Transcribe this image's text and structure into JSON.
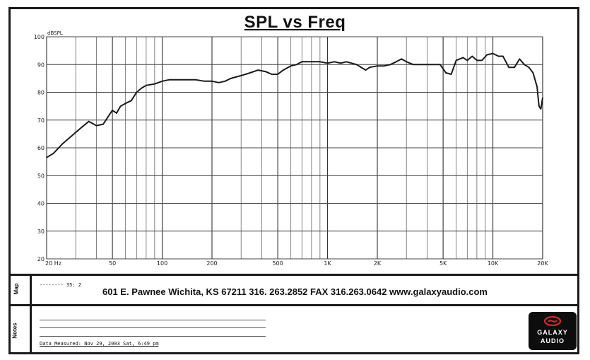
{
  "title": "SPL vs Freq",
  "side_labels": {
    "map": "Map",
    "notes": "Notes"
  },
  "cursor_note": "-------- 35: 2",
  "address": "601 E. Pawnee Wichita, KS 67211 316. 263.2852 FAX 316.263.0642 www.galaxyaudio.com",
  "date_measured": "Data Measured: Nov 29, 2003  Sat, 6:49 pm",
  "logo": {
    "line1": "GALAXY",
    "line2": "AUDIO",
    "accent": "#d7262b"
  },
  "chart_data": {
    "type": "line",
    "title": "SPL vs Freq",
    "ylabel": "dBSPL",
    "xlabel": "",
    "x_scale": "log",
    "xlim": [
      20,
      20000
    ],
    "ylim": [
      20,
      100
    ],
    "y_ticks": [
      20,
      30,
      40,
      50,
      60,
      70,
      80,
      90,
      100
    ],
    "x_tick_labels": [
      {
        "x": 20,
        "label": "20  Hz"
      },
      {
        "x": 50,
        "label": "50"
      },
      {
        "x": 100,
        "label": "100"
      },
      {
        "x": 200,
        "label": "200"
      },
      {
        "x": 500,
        "label": "500"
      },
      {
        "x": 1000,
        "label": "1K"
      },
      {
        "x": 2000,
        "label": "2K"
      },
      {
        "x": 5000,
        "label": "5K"
      },
      {
        "x": 10000,
        "label": "10K"
      },
      {
        "x": 20000,
        "label": "20K"
      }
    ],
    "grid": true,
    "line_color": "#1a1a1a",
    "series": [
      {
        "x": [
          20,
          22,
          25,
          28,
          32,
          36,
          40,
          44,
          48,
          50,
          53,
          56,
          60,
          65,
          70,
          75,
          80,
          90,
          100,
          110,
          120,
          140,
          160,
          180,
          200,
          220,
          240,
          260,
          300,
          340,
          380,
          420,
          460,
          500,
          540,
          600,
          650,
          700,
          800,
          900,
          1000,
          1100,
          1200,
          1300,
          1500,
          1700,
          1800,
          2000,
          2200,
          2400,
          2600,
          2800,
          3000,
          3300,
          3600,
          4000,
          4400,
          4800,
          5200,
          5600,
          6000,
          6600,
          7000,
          7500,
          8000,
          8600,
          9200,
          10000,
          10800,
          11500,
          12500,
          13500,
          14500,
          15500,
          16500,
          17500,
          18500,
          19000,
          19500,
          20000
        ],
        "y": [
          56.5,
          58,
          61.5,
          64,
          67,
          69.5,
          68,
          68.5,
          72,
          73.5,
          72.5,
          75,
          76,
          77,
          80,
          81.5,
          82.5,
          83,
          84,
          84.5,
          84.5,
          84.5,
          84.5,
          84,
          84,
          83.5,
          84,
          85,
          86,
          87,
          88,
          87.5,
          86.5,
          86.5,
          88,
          89.5,
          90,
          91,
          91,
          91,
          90.5,
          91,
          90.5,
          91,
          90,
          88,
          89,
          89.5,
          89.5,
          90,
          91,
          92,
          91,
          90,
          90,
          90,
          90,
          90,
          87,
          86.5,
          91.5,
          92.5,
          91.5,
          93,
          91.5,
          91.5,
          93.5,
          94,
          93,
          93,
          89,
          89,
          92,
          90,
          89,
          87,
          82,
          75,
          74,
          78
        ]
      }
    ]
  }
}
